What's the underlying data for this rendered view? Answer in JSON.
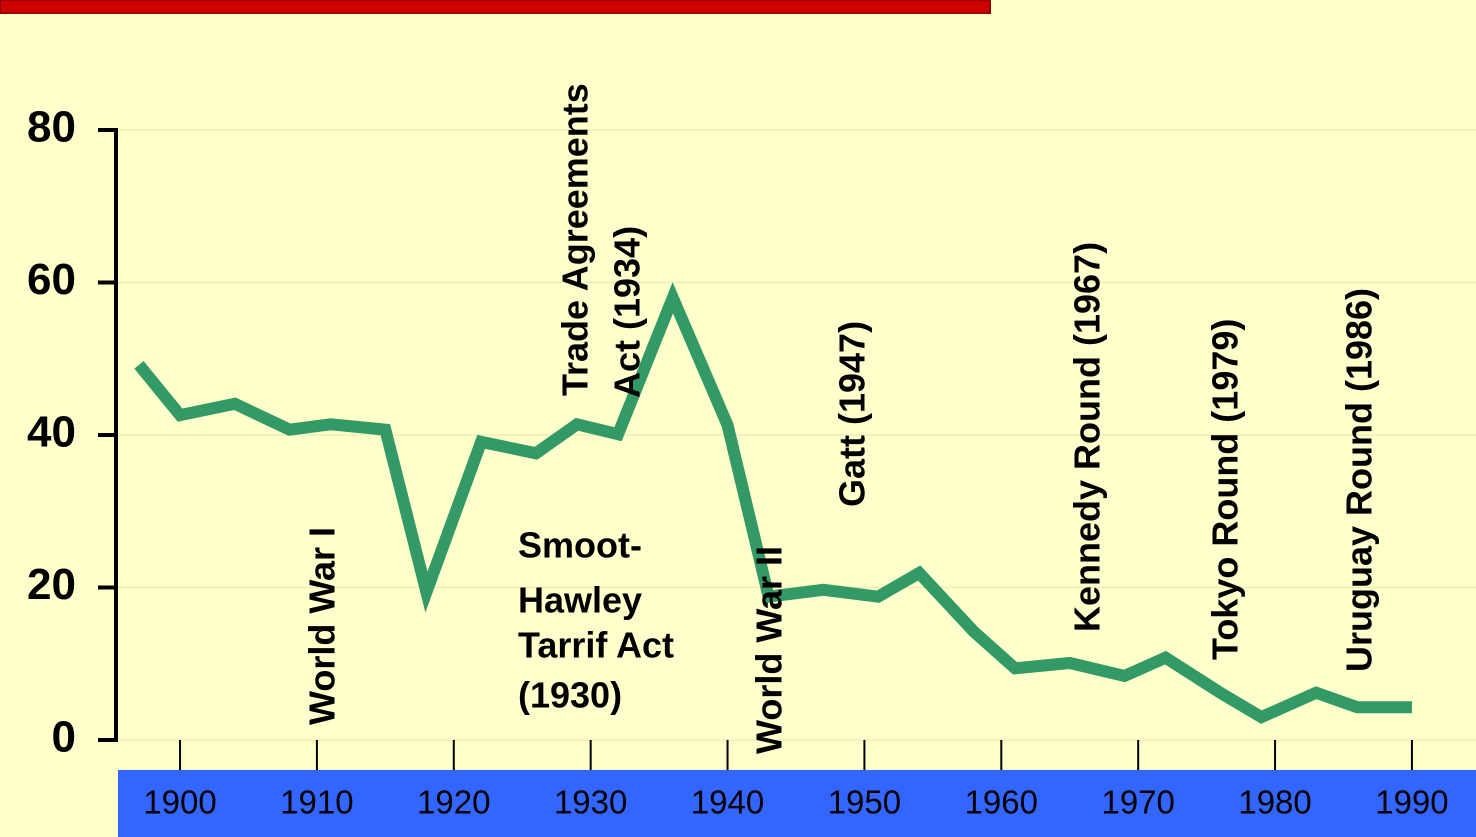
{
  "chart_data": {
    "type": "line",
    "x": [
      1897,
      1900,
      1904,
      1908,
      1911,
      1915,
      1918,
      1922,
      1926,
      1929,
      1932,
      1936,
      1940,
      1943,
      1947,
      1951,
      1954,
      1958,
      1961,
      1965,
      1969,
      1972,
      1976,
      1979,
      1983,
      1986,
      1990
    ],
    "series": [
      {
        "color": "#339966",
        "values": [
          49.2,
          42.6,
          44.1,
          40.7,
          41.4,
          40.7,
          19.4,
          39.1,
          37.6,
          41.4,
          40.1,
          58,
          41.3,
          18.8,
          19.7,
          18.8,
          21.9,
          14.2,
          9.4,
          10.1,
          8.4,
          10.8,
          6.2,
          3,
          6.2,
          4.3,
          4.3
        ]
      }
    ],
    "xlim": [
      1895,
      1993
    ],
    "xticks": [
      1900,
      1910,
      1920,
      1930,
      1940,
      1950,
      1960,
      1970,
      1980,
      1990
    ],
    "ylim": [
      0,
      80
    ],
    "yticks": [
      0,
      20,
      40,
      60,
      80
    ],
    "grid": true,
    "annotations": [
      [
        "World War I"
      ],
      [
        "Trade Agreements",
        "Act (1934)"
      ],
      [
        "Smoot-",
        "Hawley",
        "Tarrif Act",
        "(1930)"
      ],
      [
        "World War II"
      ],
      [
        "Gatt (1947)"
      ],
      [
        "Kennedy Round (1967)"
      ],
      [
        "Tokyo Round (1979)"
      ],
      [
        "Uruguay Round (1986)"
      ]
    ]
  }
}
